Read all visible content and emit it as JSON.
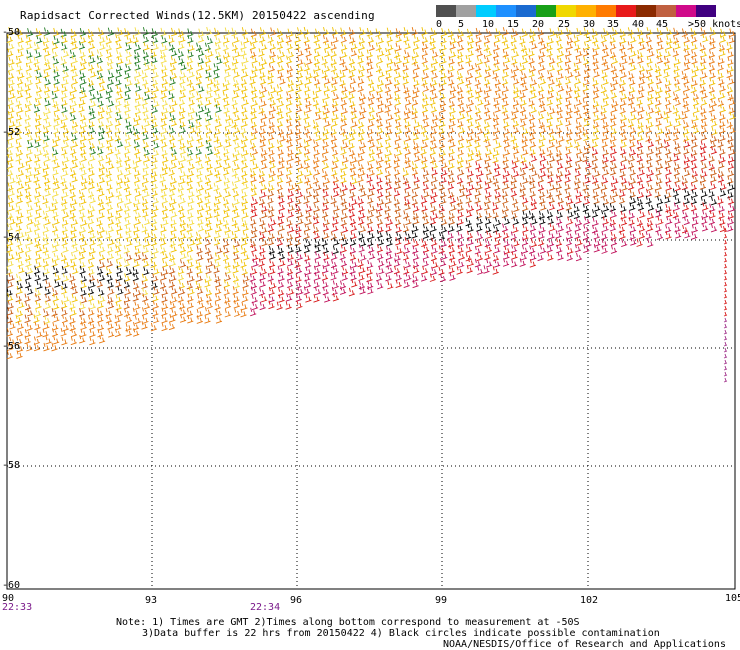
{
  "title": "Rapidsact Corrected Winds(12.5KM) 20150422 ascending",
  "legend": {
    "colors": [
      "#505050",
      "#a0a0a0",
      "#00ccff",
      "#1e90ff",
      "#1a6ad0",
      "#18a018",
      "#f0d800",
      "#ffb000",
      "#ff7a00",
      "#e81a1a",
      "#8b2a00",
      "#c06040",
      "#d00a8a",
      "#400080"
    ],
    "labels": [
      "0",
      "5",
      "10",
      "15",
      "20",
      "25",
      "30",
      "35",
      "40",
      "45",
      ">50 knots"
    ]
  },
  "axes": {
    "lat_labels": [
      "-50",
      "-52",
      "-54",
      "-56",
      "-58",
      "-60"
    ],
    "lon_labels": [
      "90",
      "93",
      "96",
      "99",
      "102",
      "105"
    ]
  },
  "times": {
    "left": "22:33",
    "mid": "22:34"
  },
  "notes": {
    "line1": "Note: 1) Times are GMT 2)Times along bottom correspond to measurement at -50S",
    "line2": "3)Data buffer is 22 hrs from 20150422 4) Black circles indicate possible contamination",
    "line3": "NOAA/NESDIS/Office of Research and Applications"
  },
  "wind_field": {
    "colors": {
      "green": "#1f7a1f",
      "yellow": "#f0c000",
      "lightyellow": "#f4dc40",
      "orange": "#e87a10",
      "darkorange": "#c85a10",
      "red": "#d81818",
      "magenta": "#c0105a",
      "black": "#000000",
      "brown": "#8b3a10",
      "purple": "#a0308a"
    }
  }
}
